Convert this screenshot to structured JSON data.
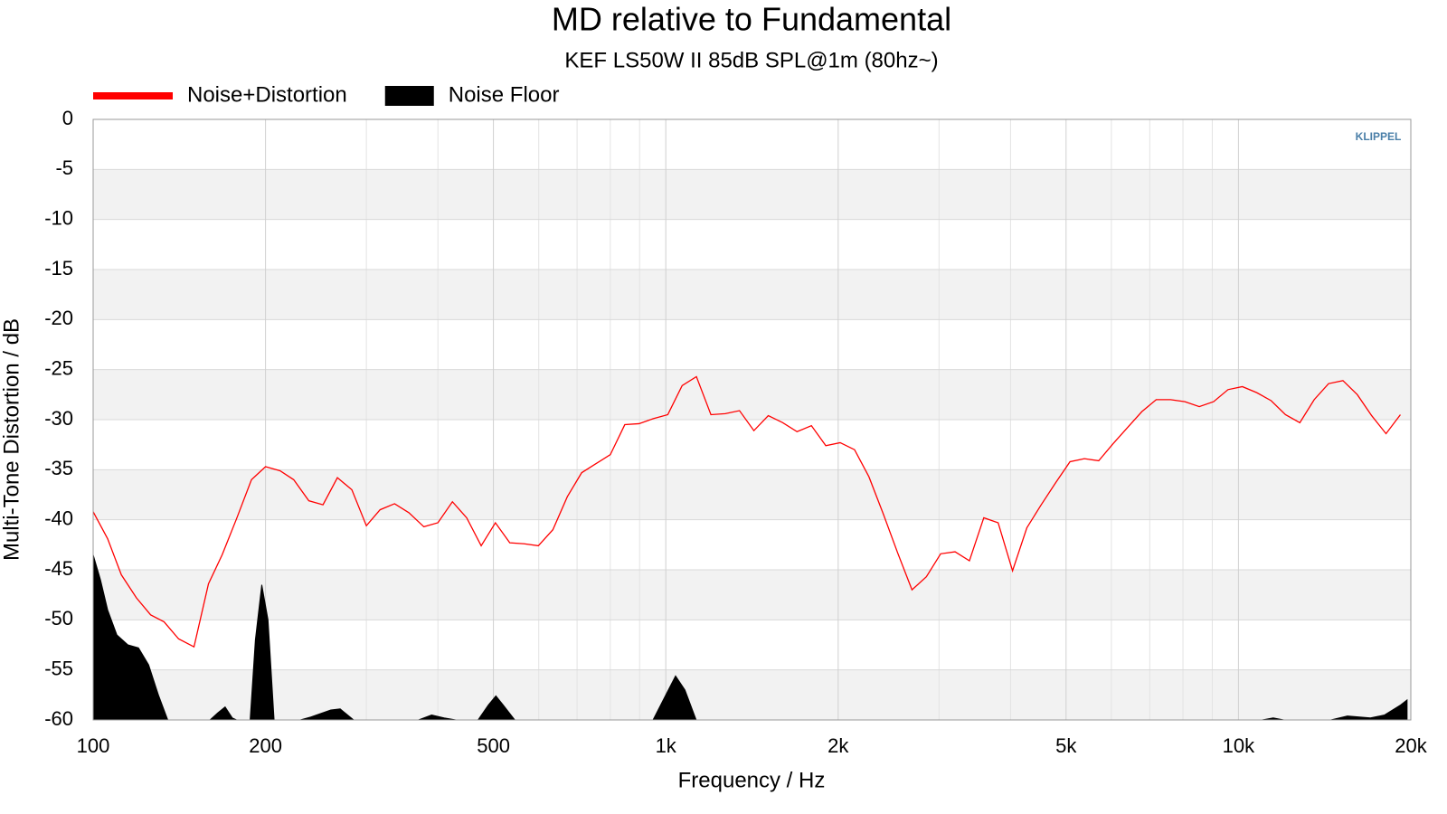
{
  "chart_data": {
    "type": "line",
    "title": "MD relative to Fundamental",
    "subtitle": "KEF LS50W II 85dB SPL@1m (80hz~)",
    "xlabel": "Frequency / Hz",
    "ylabel": "Multi-Tone Distortion / dB",
    "watermark": "KLIPPEL",
    "xscale": "log",
    "xlim": [
      100,
      20000
    ],
    "xticks": [
      100,
      200,
      500,
      {
        "value": 1000,
        "label": "1k"
      },
      {
        "value": 2000,
        "label": "2k"
      },
      {
        "value": 5000,
        "label": "5k"
      },
      {
        "value": 10000,
        "label": "10k"
      },
      {
        "value": 20000,
        "label": "20k"
      }
    ],
    "xminor": [
      300,
      400,
      600,
      700,
      800,
      900,
      3000,
      4000,
      6000,
      7000,
      8000,
      9000
    ],
    "ylim": [
      -60,
      0
    ],
    "yticks": [
      0,
      -5,
      -10,
      -15,
      -20,
      -25,
      -30,
      -35,
      -40,
      -45,
      -50,
      -55,
      -60
    ],
    "grid": true,
    "legend": "top-left",
    "series": [
      {
        "name": "Noise+Distortion",
        "color": "#ff0000",
        "kind": "line",
        "x": [
          100,
          106,
          112,
          119,
          126,
          133,
          141,
          150,
          159,
          168,
          178,
          189,
          200,
          212,
          224,
          238,
          252,
          267,
          283,
          300,
          317,
          336,
          356,
          378,
          400,
          424,
          449,
          476,
          504,
          534,
          566,
          599,
          635,
          673,
          713,
          755,
          800,
          848,
          898,
          951,
          1008,
          1068,
          1131,
          1199,
          1270,
          1345,
          1425,
          1510,
          1600,
          1695,
          1796,
          1903,
          2016,
          2136,
          2263,
          2397,
          2540,
          2691,
          2851,
          3020,
          3200,
          3390,
          3592,
          3805,
          4032,
          4271,
          4525,
          4795,
          5080,
          5382,
          5702,
          6041,
          6400,
          6781,
          7184,
          7611,
          8063,
          8543,
          9051,
          9589,
          10159,
          10764,
          11404,
          12082,
          12800,
          13561,
          14368,
          15222,
          16127,
          17086,
          18102,
          19179
        ],
        "values": [
          -39.2,
          -41.9,
          -45.5,
          -47.8,
          -49.5,
          -50.2,
          -51.9,
          -52.7,
          -46.4,
          -43.5,
          -39.9,
          -36.0,
          -34.7,
          -35.1,
          -36.0,
          -38.1,
          -38.5,
          -35.8,
          -37.0,
          -40.6,
          -39.0,
          -38.4,
          -39.3,
          -40.7,
          -40.3,
          -38.2,
          -39.8,
          -42.6,
          -40.3,
          -42.3,
          -42.4,
          -42.6,
          -41.0,
          -37.7,
          -35.3,
          -34.4,
          -33.5,
          -30.5,
          -30.4,
          -29.9,
          -29.5,
          -26.6,
          -25.7,
          -29.5,
          -29.4,
          -29.1,
          -31.1,
          -29.6,
          -30.3,
          -31.2,
          -30.6,
          -32.6,
          -32.3,
          -33.0,
          -35.7,
          -39.4,
          -43.3,
          -47.0,
          -45.7,
          -43.4,
          -43.2,
          -44.1,
          -39.8,
          -40.3,
          -45.1,
          -40.8,
          -38.5,
          -36.3,
          -34.2,
          -33.9,
          -34.1,
          -32.4,
          -30.8,
          -29.2,
          -28.0,
          -28.0,
          -28.2,
          -28.7,
          -28.2,
          -27.0,
          -26.7,
          -27.3,
          -28.1,
          -29.5,
          -30.3,
          -28.0,
          -26.4,
          -26.1,
          -27.5,
          -29.6,
          -31.4,
          -29.5
        ]
      },
      {
        "name": "Noise Floor",
        "color": "#000000",
        "kind": "area",
        "x": [
          100,
          103,
          106,
          110,
          115,
          120,
          125,
          130,
          135,
          160,
          165,
          170,
          175,
          178,
          188,
          192,
          197,
          202,
          207,
          230,
          240,
          260,
          270,
          285,
          370,
          390,
          410,
          430,
          470,
          490,
          505,
          520,
          545,
          950,
          1000,
          1040,
          1080,
          1130,
          11000,
          11500,
          12000,
          14500,
          15500,
          17000,
          18000,
          19200,
          19700
        ],
        "values": [
          -43.5,
          -46,
          -49,
          -51.5,
          -52.5,
          -52.8,
          -54.5,
          -57.5,
          -60,
          -60,
          -59.3,
          -58.7,
          -59.8,
          -60,
          -60,
          -52,
          -46.5,
          -50,
          -60,
          -60,
          -59.7,
          -59,
          -58.9,
          -60,
          -60,
          -59.5,
          -59.8,
          -60,
          -60,
          -58.5,
          -57.6,
          -58.5,
          -60,
          -60,
          -57.5,
          -55.6,
          -57,
          -60,
          -60,
          -59.8,
          -60,
          -60,
          -59.6,
          -59.8,
          -59.5,
          -58.5,
          -58
        ]
      }
    ]
  }
}
